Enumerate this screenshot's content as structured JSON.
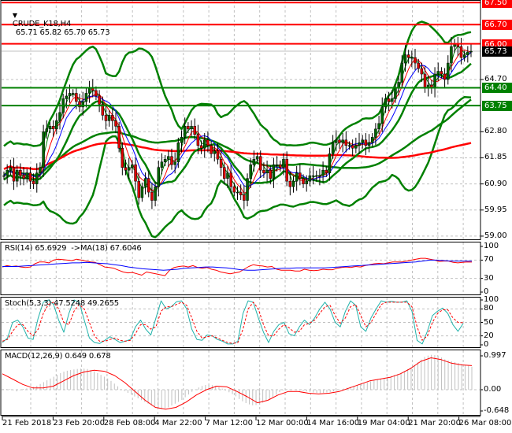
{
  "header": {
    "menu_icon": "triangle-down-icon",
    "symbol": "CRUDE_K18,H4",
    "ohlc": "65.71 65.82 65.70 65.73",
    "open": "65.71",
    "high": "65.82",
    "low": "65.70",
    "close": "65.73"
  },
  "colors": {
    "resistance": "#ff0000",
    "support": "#008000",
    "bollinger": "#008000",
    "ma_fast_green": "#008000",
    "ma_red": "#ff0000",
    "ma_blue": "#0000ff",
    "ma_long_green": "#008000",
    "ma_long_red": "#ff0000",
    "bull_candle": "#006400",
    "bear_candle": "#e00000",
    "rsi": "#ff0000",
    "rsi_ma": "#0000ff",
    "stoch_main": "#20b2aa",
    "stoch_signal": "#ff0000",
    "macd_hist": "#c0c0c0",
    "macd_signal": "#ff0000",
    "current_price_tag": "#000000",
    "grid": "#c0c0c0"
  },
  "price_axis": {
    "ticks": [
      "64.70",
      "62.80",
      "61.85",
      "60.90",
      "59.95",
      "59.00"
    ],
    "tagged_levels": [
      {
        "label": "67.50",
        "type": "resistance"
      },
      {
        "label": "66.70",
        "type": "resistance"
      },
      {
        "label": "66.00",
        "type": "resistance"
      },
      {
        "label": "65.73",
        "type": "current"
      },
      {
        "label": "64.40",
        "type": "support"
      },
      {
        "label": "63.75",
        "type": "support"
      }
    ]
  },
  "rsi_panel": {
    "title": "RSI(14) 65.6929  ->MA(18) 67.6046",
    "ticks": [
      "100",
      "70",
      "30",
      "0"
    ]
  },
  "stoch_panel": {
    "title": "Stoch(5,3,3) 47.5248 49.2655",
    "ticks": [
      "100",
      "80",
      "50",
      "20",
      "0"
    ]
  },
  "macd_panel": {
    "title": "MACD(12,26,9) 0.649 0.678",
    "ticks": [
      "0.997",
      "0.00",
      "-0.648"
    ]
  },
  "time_axis": {
    "labels": [
      "21 Feb 2018",
      "23 Feb 20:00",
      "28 Feb 08:00",
      "4 Mar 22:00",
      "7 Mar 12:00",
      "12 Mar 00:00",
      "14 Mar 16:00",
      "19 Mar 04:00",
      "21 Mar 20:00",
      "26 Mar 08:00"
    ]
  },
  "chart_data": [
    {
      "type": "candlestick",
      "title": "CRUDE_K18,H4 65.71 65.82 65.70 65.73",
      "xlabel": "",
      "ylabel": "",
      "ylim": [
        59.0,
        67.6
      ],
      "grid": true,
      "x_tick_labels": [
        "21 Feb 2018",
        "23 Feb 20:00",
        "28 Feb 08:00",
        "4 Mar 22:00",
        "7 Mar 12:00",
        "12 Mar 00:00",
        "14 Mar 16:00",
        "19 Mar 04:00",
        "21 Mar 20:00",
        "26 Mar 08:00"
      ],
      "y_tick_labels": [
        "64.70",
        "62.80",
        "61.85",
        "60.90",
        "59.95",
        "59.00"
      ],
      "horizontal_levels": {
        "resistance": [
          67.5,
          66.7,
          66.0
        ],
        "support": [
          64.4,
          63.75
        ],
        "current_price": 65.73
      },
      "close_series_approx": [
        61.2,
        61.4,
        61.5,
        61.0,
        61.4,
        61.2,
        61.1,
        61.3,
        61.0,
        60.9,
        61.3,
        61.5,
        62.8,
        62.9,
        63.0,
        62.9,
        63.2,
        63.5,
        64.0,
        64.1,
        64.2,
        64.2,
        63.9,
        63.7,
        63.9,
        64.2,
        64.4,
        64.3,
        64.1,
        63.8,
        63.4,
        63.2,
        63.4,
        63.2,
        63.0,
        62.2,
        61.5,
        61.4,
        61.5,
        61.6,
        61.0,
        60.4,
        60.8,
        61.1,
        60.6,
        60.3,
        60.8,
        61.5,
        61.7,
        61.8,
        61.9,
        61.6,
        61.7,
        62.4,
        62.6,
        63.0,
        62.9,
        63.0,
        62.7,
        62.3,
        62.2,
        62.5,
        62.3,
        62.0,
        62.1,
        61.8,
        61.5,
        61.1,
        61.3,
        60.8,
        60.6,
        60.6,
        60.5,
        60.3,
        61.1,
        61.6,
        61.8,
        61.9,
        61.4,
        61.3,
        61.4,
        61.1,
        61.6,
        61.6,
        61.5,
        61.8,
        61.0,
        60.8,
        61.0,
        61.3,
        61.1,
        60.9,
        61.0,
        61.2,
        61.2,
        61.2,
        61.2,
        61.4,
        61.3,
        62.0,
        62.4,
        62.5,
        62.4,
        62.5,
        62.3,
        62.3,
        62.2,
        62.3,
        62.4,
        62.5,
        62.3,
        62.4,
        62.6,
        62.9,
        63.1,
        63.7,
        64.0,
        63.9,
        64.0,
        64.4,
        64.6,
        65.3,
        65.6,
        65.5,
        65.5,
        65.3,
        65.1,
        64.9,
        64.4,
        64.5,
        64.4,
        64.9,
        65.0,
        64.9,
        64.7,
        65.3,
        65.9,
        66.0,
        65.9,
        65.5,
        65.6,
        65.7,
        65.73
      ],
      "series": [
        {
          "name": "Bollinger upper",
          "color": "#008000"
        },
        {
          "name": "Bollinger lower",
          "color": "#008000"
        },
        {
          "name": "MA fast (green)",
          "color": "#008000"
        },
        {
          "name": "MA (red)",
          "color": "#ff0000"
        },
        {
          "name": "MA (blue)",
          "color": "#0000ff"
        },
        {
          "name": "MA long (green)",
          "color": "#008000"
        },
        {
          "name": "MA long (red)",
          "color": "#ff0000"
        }
      ]
    },
    {
      "type": "line",
      "title": "RSI(14) 65.6929 ->MA(18) 67.6046",
      "ylim": [
        0,
        100
      ],
      "y_tick_labels": [
        "100",
        "70",
        "30",
        "0"
      ],
      "series": [
        {
          "name": "RSI(14)",
          "color": "#ff0000",
          "last": 65.6929,
          "values": [
            55,
            58,
            56,
            57,
            55,
            54,
            55,
            62,
            66,
            66,
            64,
            70,
            72,
            71,
            70,
            69,
            72,
            70,
            68,
            66,
            65,
            60,
            55,
            54,
            52,
            48,
            44,
            42,
            43,
            40,
            37,
            44,
            42,
            40,
            38,
            36,
            48,
            54,
            56,
            57,
            55,
            58,
            54,
            52,
            54,
            50,
            48,
            44,
            42,
            40,
            42,
            44,
            50,
            56,
            60,
            58,
            57,
            55,
            56,
            50,
            48,
            48,
            48,
            46,
            46,
            50,
            48,
            47,
            48,
            50,
            49,
            49,
            52,
            54,
            55,
            54,
            56,
            55,
            58,
            60,
            62,
            63,
            62,
            64,
            66,
            66,
            66,
            68,
            70,
            72,
            74,
            74,
            72,
            70,
            67,
            68,
            68,
            65,
            64,
            65,
            66,
            65.69
          ]
        },
        {
          "name": "MA(18)",
          "color": "#0000ff",
          "last": 67.6046,
          "values": [
            56,
            56,
            56,
            57,
            58,
            59,
            60,
            61,
            62,
            63,
            64,
            64,
            65,
            64,
            63,
            62,
            60,
            58,
            55,
            53,
            51,
            50,
            49,
            48,
            49,
            50,
            52,
            53,
            54,
            55,
            55,
            54,
            53,
            51,
            49,
            48,
            48,
            49,
            50,
            51,
            52,
            52,
            53,
            53,
            53,
            53,
            53,
            54,
            55,
            56,
            57,
            58,
            59,
            60,
            61,
            62,
            63,
            64,
            65,
            66,
            68,
            70,
            70,
            69,
            68,
            68,
            68,
            67.6
          ]
        }
      ]
    },
    {
      "type": "line",
      "title": "Stoch(5,3,3) 47.5248 49.2655",
      "ylim": [
        0,
        100
      ],
      "y_tick_labels": [
        "100",
        "80",
        "50",
        "20",
        "0"
      ],
      "series": [
        {
          "name": "%K",
          "color": "#20b2aa",
          "last": 47.5248,
          "values": [
            5,
            15,
            50,
            55,
            40,
            15,
            12,
            60,
            95,
            100,
            90,
            55,
            28,
            70,
            100,
            95,
            55,
            15,
            5,
            3,
            10,
            18,
            12,
            5,
            8,
            12,
            40,
            55,
            35,
            22,
            60,
            98,
            80,
            85,
            96,
            98,
            80,
            35,
            12,
            10,
            22,
            20,
            12,
            8,
            2,
            2,
            8,
            70,
            98,
            95,
            60,
            28,
            5,
            30,
            45,
            50,
            25,
            20,
            40,
            55,
            45,
            60,
            80,
            95,
            80,
            50,
            40,
            75,
            98,
            88,
            40,
            30,
            60,
            80,
            98,
            95,
            97,
            95,
            95,
            98,
            75,
            10,
            2,
            30,
            65,
            75,
            82,
            70,
            45,
            30,
            47.52
          ]
        },
        {
          "name": "%D",
          "color": "#ff0000",
          "dashed": true,
          "last": 49.2655,
          "values": [
            8,
            12,
            30,
            45,
            45,
            30,
            20,
            35,
            70,
            90,
            95,
            80,
            50,
            45,
            75,
            90,
            80,
            50,
            20,
            8,
            8,
            12,
            15,
            10,
            8,
            10,
            25,
            45,
            45,
            35,
            40,
            75,
            85,
            85,
            90,
            95,
            88,
            60,
            30,
            15,
            18,
            20,
            15,
            10,
            5,
            3,
            5,
            35,
            80,
            95,
            80,
            45,
            20,
            20,
            35,
            45,
            38,
            28,
            30,
            45,
            48,
            55,
            70,
            85,
            88,
            65,
            48,
            60,
            85,
            90,
            65,
            40,
            50,
            70,
            90,
            95,
            95,
            95,
            95,
            95,
            85,
            40,
            10,
            20,
            50,
            70,
            78,
            78,
            60,
            50,
            49.27
          ]
        }
      ]
    },
    {
      "type": "bar",
      "title": "MACD(12,26,9) 0.649 0.678",
      "ylim": [
        -0.648,
        0.997
      ],
      "y_tick_labels": [
        "0.997",
        "0.00",
        "-0.648"
      ],
      "series": [
        {
          "name": "MACD histogram",
          "color": "#c0c0c0",
          "last": 0.649,
          "values": [
            0.02,
            0.02,
            -0.05,
            0.02,
            0.05,
            0.1,
            0.2,
            0.3,
            0.4,
            0.5,
            0.55,
            0.58,
            0.6,
            0.58,
            0.5,
            0.4,
            0.3,
            0.15,
            0.0,
            -0.1,
            -0.2,
            -0.3,
            -0.4,
            -0.5,
            -0.55,
            -0.5,
            -0.4,
            -0.3,
            -0.15,
            0.0,
            0.1,
            0.15,
            0.12,
            0.05,
            -0.05,
            -0.15,
            -0.3,
            -0.4,
            -0.45,
            -0.4,
            -0.3,
            -0.2,
            -0.05,
            0.02,
            0.0,
            -0.03,
            -0.05,
            -0.08,
            -0.1,
            -0.08,
            -0.05,
            0.0,
            0.05,
            0.1,
            0.15,
            0.2,
            0.25,
            0.3,
            0.35,
            0.4,
            0.45,
            0.55,
            0.65,
            0.8,
            0.95,
            0.99,
            0.95,
            0.85,
            0.8,
            0.75,
            0.7,
            0.65
          ]
        },
        {
          "name": "Signal",
          "color": "#ff0000",
          "type": "line",
          "last": 0.678,
          "values": [
            0.45,
            0.3,
            0.15,
            0.05,
            0.05,
            0.1,
            0.25,
            0.4,
            0.5,
            0.55,
            0.52,
            0.4,
            0.2,
            -0.05,
            -0.3,
            -0.5,
            -0.55,
            -0.5,
            -0.35,
            -0.15,
            0.0,
            0.1,
            0.08,
            -0.05,
            -0.2,
            -0.37,
            -0.3,
            -0.15,
            -0.05,
            -0.05,
            -0.1,
            -0.12,
            -0.1,
            -0.05,
            0.05,
            0.15,
            0.25,
            0.3,
            0.35,
            0.45,
            0.6,
            0.8,
            0.9,
            0.85,
            0.75,
            0.7,
            0.68
          ]
        }
      ]
    }
  ]
}
